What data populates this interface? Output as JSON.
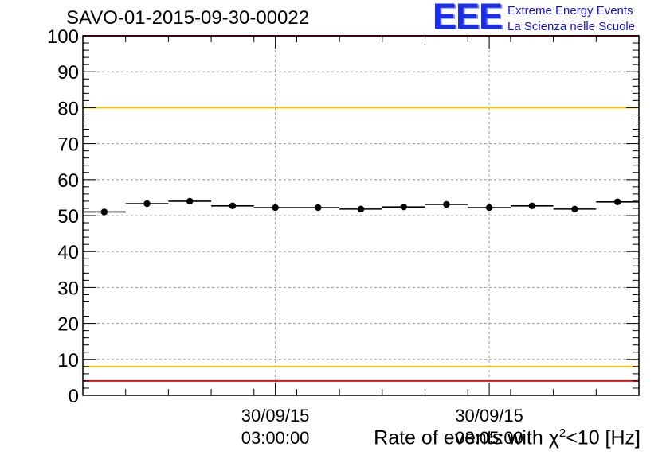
{
  "chart_data": {
    "type": "scatter",
    "title": "SAVO-01-2015-09-30-00022",
    "xlabel": "Rate of events with χ²<10 [Hz]",
    "xlabel_parts": {
      "before": "Rate of events with χ",
      "sup": "2",
      "after": "<10 [Hz]"
    },
    "ylim": [
      0,
      100
    ],
    "y_ticks": [
      0,
      10,
      20,
      30,
      40,
      50,
      60,
      70,
      80,
      90,
      100
    ],
    "x_tick_labels": [
      {
        "index": 4.5,
        "date": "30/09/15",
        "time": "03:00:00"
      },
      {
        "index": 9.5,
        "date": "30/09/15",
        "time": "03:05:00"
      }
    ],
    "grid": true,
    "n_bins": 13,
    "series": [
      {
        "marker": "circle",
        "values": [
          51.0,
          53.3,
          54.0,
          52.7,
          52.2,
          52.2,
          51.8,
          52.4,
          53.1,
          52.2,
          52.7,
          51.8,
          53.8
        ]
      }
    ],
    "reference_lines": [
      {
        "y": 80,
        "color": "#f0c800"
      },
      {
        "y": 8,
        "color": "#f0c800"
      },
      {
        "y": 100,
        "color": "#e8101a"
      },
      {
        "y": 4,
        "color": "#e8101a"
      }
    ]
  },
  "logo": {
    "mark": "EEE",
    "line1": "Extreme Energy Events",
    "line2": "La Scienza nelle Scuole"
  }
}
